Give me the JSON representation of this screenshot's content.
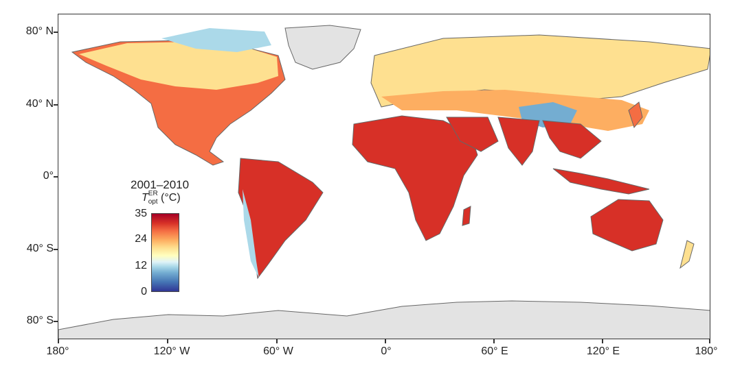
{
  "map": {
    "lat_labels": [
      "80° N",
      "40° N",
      "0°",
      "40° S",
      "80° S"
    ],
    "lon_labels": [
      "180°",
      "120° W",
      "60° W",
      "0°",
      "60° E",
      "120° E",
      "180°"
    ]
  },
  "legend": {
    "title": "2001–2010",
    "var_symbol": "T",
    "var_sup": "ER",
    "var_sub": "opt",
    "var_unit": " (°C)",
    "ticks": [
      "35",
      "24",
      "12",
      "0"
    ]
  },
  "colors": {
    "land_hot": "#d73027",
    "land_warm": "#f46d43",
    "land_mild": "#fdae61",
    "land_cool": "#fee090",
    "land_cold": "#e0f3f8",
    "land_ice": "#abd9e9",
    "nodata": "#e3e3e3"
  }
}
